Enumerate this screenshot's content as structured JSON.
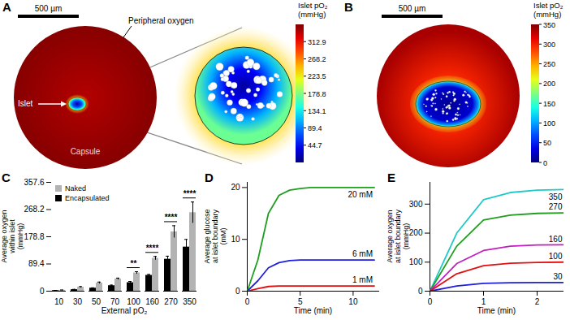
{
  "chart_data": [
    {
      "type": "field",
      "panel": "A",
      "scale_bar": "500 µm",
      "labels": [
        "Peripheral oxygen",
        "Islet",
        "Capsule"
      ],
      "colorbar": {
        "title": "Islet pO₂\n(mmHg)",
        "range": [
          0,
          357.6
        ],
        "ticks": [
          44.7,
          89.4,
          134.1,
          178.8,
          223.5,
          268.2,
          312.9
        ]
      }
    },
    {
      "type": "field",
      "panel": "B",
      "scale_bar": "500 µm",
      "colorbar": {
        "title": "Islet pO₂\n(mmHg)",
        "range": [
          0,
          350
        ],
        "ticks": [
          0,
          50,
          100,
          150,
          200,
          250,
          300,
          350
        ]
      }
    },
    {
      "type": "bar",
      "panel": "C",
      "categories": [
        10,
        30,
        50,
        70,
        100,
        160,
        270,
        350
      ],
      "series": [
        {
          "name": "Naked",
          "color": "#b3b3b3",
          "values": [
            3,
            13,
            27,
            40,
            60,
            108,
            195,
            258
          ],
          "errors": [
            1,
            2,
            3,
            3,
            4,
            6,
            20,
            35
          ]
        },
        {
          "name": "Encapsulated",
          "color": "#000000",
          "values": [
            2,
            5,
            10,
            18,
            28,
            52,
            105,
            145
          ],
          "errors": [
            0.5,
            1,
            1,
            2,
            4,
            3,
            10,
            25
          ]
        }
      ],
      "xlabel": "External pO₂",
      "ylabel": "Average oxygen\nwithin islet\n(mmHg)",
      "ylim": [
        0,
        357.6
      ],
      "yticks": [
        0,
        89.4,
        178.8,
        268.2,
        357.6
      ],
      "legend": "top-left",
      "annotations": [
        {
          "category": 100,
          "text": "**"
        },
        {
          "category": 160,
          "text": "****"
        },
        {
          "category": 270,
          "text": "****"
        },
        {
          "category": 350,
          "text": "****"
        }
      ]
    },
    {
      "type": "line",
      "panel": "D",
      "x": [
        0,
        1,
        2,
        3,
        4,
        5,
        6,
        8,
        10,
        12
      ],
      "series": [
        {
          "name": "20 mM",
          "color": "#1f9e1f",
          "values": [
            0,
            6,
            15,
            18.5,
            19.5,
            19.8,
            20,
            20,
            20,
            20
          ]
        },
        {
          "name": "6 mM",
          "color": "#1f1fdd",
          "values": [
            0,
            2,
            4.5,
            5.5,
            5.9,
            6,
            6,
            6,
            6,
            6
          ]
        },
        {
          "name": "1 mM",
          "color": "#e01010",
          "values": [
            0,
            0.5,
            0.9,
            1,
            1,
            1,
            1,
            1,
            1,
            1
          ]
        }
      ],
      "xlabel": "Time (min)",
      "ylabel": "Average glucose\nat islet boundary\n(mM)",
      "xlim": [
        0,
        12.5
      ],
      "xticks": [
        0,
        5,
        10
      ],
      "ylim": [
        0,
        21
      ],
      "yticks": [
        0,
        10,
        20
      ]
    },
    {
      "type": "line",
      "panel": "E",
      "x": [
        0,
        0.5,
        1,
        1.5,
        2,
        2.5
      ],
      "series": [
        {
          "name": "350",
          "color": "#1fc9c9",
          "values": [
            0,
            200,
            315,
            340,
            348,
            350
          ]
        },
        {
          "name": "270",
          "color": "#1f9e1f",
          "values": [
            0,
            155,
            245,
            262,
            268,
            270
          ]
        },
        {
          "name": "160",
          "color": "#c020c0",
          "values": [
            0,
            95,
            140,
            155,
            159,
            160
          ]
        },
        {
          "name": "100",
          "color": "#e01010",
          "values": [
            0,
            60,
            88,
            96,
            99,
            100
          ]
        },
        {
          "name": "30",
          "color": "#1f1fdd",
          "values": [
            0,
            18,
            27,
            29,
            30,
            30
          ]
        }
      ],
      "xlabel": "Time (min)",
      "ylabel": "Average oxygen\nat islet boundary\n(mmHg)",
      "xlim": [
        0,
        2.5
      ],
      "xticks": [
        0,
        1,
        2
      ],
      "ylim": [
        0,
        375
      ],
      "yticks": [
        0,
        100,
        200,
        300
      ]
    }
  ]
}
